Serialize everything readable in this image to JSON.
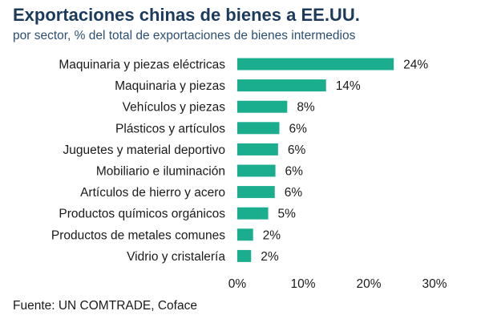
{
  "header": {
    "title": "Exportaciones chinas de bienes a EE.UU.",
    "subtitle": "por sector, % del total de exportaciones de bienes intermedios"
  },
  "footer": {
    "source": "Fuente: UN COMTRADE, Coface"
  },
  "colors": {
    "bar": "#1aae8f",
    "title": "#1b3a5c",
    "subtitle": "#2c4f73"
  },
  "chart_data": {
    "type": "bar",
    "orientation": "horizontal",
    "title": "Exportaciones chinas de bienes a EE.UU.",
    "subtitle": "por sector, % del total de exportaciones de bienes intermedios",
    "categories": [
      "Maquinaria y piezas eléctricas",
      "Maquinaria y piezas",
      "Vehículos y piezas",
      "Plásticos y artículos",
      "Juguetes y material deportivo",
      "Mobiliario e iluminación",
      "Artículos de hierro y acero",
      "Productos químicos orgánicos",
      "Productos de metales comunes",
      "Vidrio y cristalería"
    ],
    "values": [
      23.8,
      13.5,
      7.6,
      6.4,
      6.2,
      5.8,
      5.7,
      4.7,
      2.4,
      2.1
    ],
    "value_labels": [
      "24%",
      "14%",
      "8%",
      "6%",
      "6%",
      "6%",
      "6%",
      "5%",
      "2%",
      "2%"
    ],
    "xlim": [
      0,
      30
    ],
    "xticks": [
      0,
      10,
      20,
      30
    ],
    "xtick_labels": [
      "0%",
      "10%",
      "20%",
      "30%"
    ],
    "grid": false,
    "legend": "none"
  }
}
